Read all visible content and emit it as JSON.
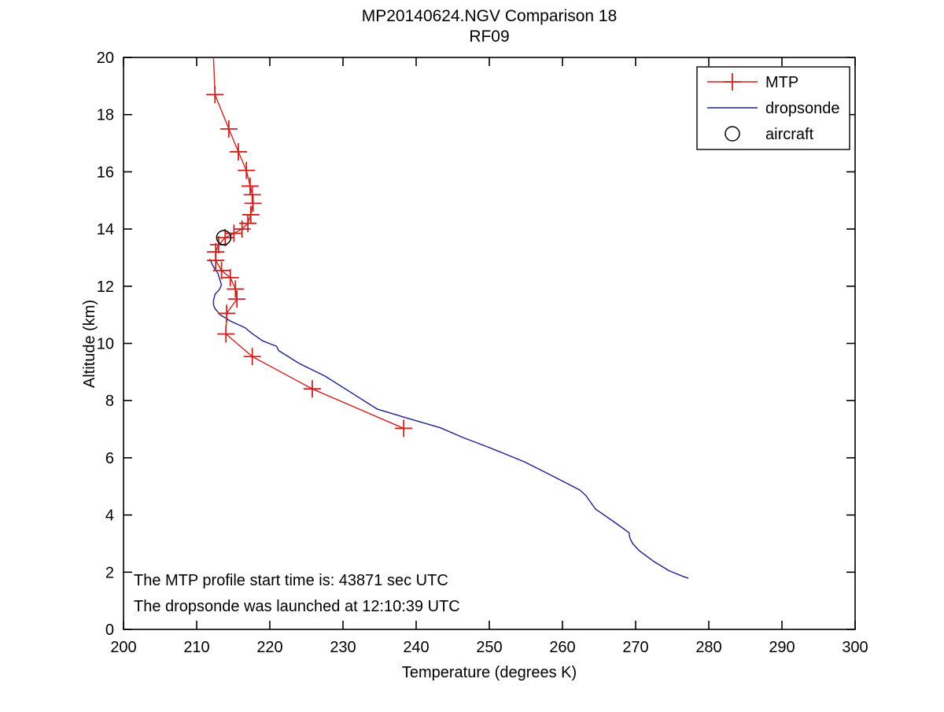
{
  "figure": {
    "background": "#ffffff",
    "axis_color": "#000000"
  },
  "chart_data": {
    "type": "line",
    "title": "MP20140624.NGV Comparison 18",
    "subtitle": "RF09",
    "xlabel": "Temperature (degrees K)",
    "ylabel": "Altitude (km)",
    "xlim": [
      200,
      300
    ],
    "ylim": [
      0,
      20
    ],
    "x_ticks": [
      200,
      210,
      220,
      230,
      240,
      250,
      260,
      270,
      280,
      290,
      300
    ],
    "y_ticks": [
      0,
      2,
      4,
      6,
      8,
      10,
      12,
      14,
      16,
      18,
      20
    ],
    "grid": false,
    "legend_position": "top-right",
    "annotations": [
      "The MTP profile start time is: 43871 sec UTC",
      "The dropsonde was launched at 12:10:39 UTC"
    ],
    "series": [
      {
        "name": "dropsonde",
        "color": "#202088",
        "marker": "none",
        "line_width": 1.4,
        "points": [
          [
            211.8,
            12.95
          ],
          [
            212.2,
            12.72
          ],
          [
            212.5,
            12.6
          ],
          [
            212.9,
            12.45
          ],
          [
            213.2,
            12.2
          ],
          [
            213.4,
            12.05
          ],
          [
            213.1,
            11.88
          ],
          [
            212.5,
            11.72
          ],
          [
            212.3,
            11.5
          ],
          [
            212.3,
            11.35
          ],
          [
            212.5,
            11.22
          ],
          [
            213.2,
            11.0
          ],
          [
            214.7,
            10.77
          ],
          [
            216.6,
            10.55
          ],
          [
            217.5,
            10.36
          ],
          [
            219.0,
            10.09
          ],
          [
            220.9,
            9.9
          ],
          [
            221.2,
            9.75
          ],
          [
            224.0,
            9.3
          ],
          [
            227.5,
            8.86
          ],
          [
            231.0,
            8.3
          ],
          [
            234.7,
            7.7
          ],
          [
            239.0,
            7.37
          ],
          [
            243.3,
            7.05
          ],
          [
            246.5,
            6.7
          ],
          [
            249.8,
            6.38
          ],
          [
            254.8,
            5.86
          ],
          [
            258.7,
            5.36
          ],
          [
            262.4,
            4.87
          ],
          [
            263.2,
            4.68
          ],
          [
            264.5,
            4.21
          ],
          [
            267.0,
            3.77
          ],
          [
            269.1,
            3.38
          ],
          [
            269.2,
            3.2
          ],
          [
            269.6,
            3.0
          ],
          [
            270.2,
            2.83
          ],
          [
            270.5,
            2.75
          ],
          [
            272.4,
            2.39
          ],
          [
            274.5,
            2.06
          ],
          [
            276.5,
            1.85
          ],
          [
            277.2,
            1.79
          ]
        ]
      },
      {
        "name": "MTP",
        "color": "#cc2222",
        "marker": "plus",
        "marker_size": 11,
        "marker_from_index": 1,
        "line_width": 1.4,
        "points": [
          [
            212.3,
            20.0
          ],
          [
            212.5,
            18.7
          ],
          [
            214.4,
            17.5
          ],
          [
            215.7,
            16.7
          ],
          [
            216.8,
            16.05
          ],
          [
            217.3,
            15.5
          ],
          [
            217.6,
            15.2
          ],
          [
            217.7,
            14.9
          ],
          [
            217.4,
            14.5
          ],
          [
            217.0,
            14.2
          ],
          [
            216.2,
            14.0
          ],
          [
            215.1,
            13.85
          ],
          [
            213.9,
            13.7
          ],
          [
            213.0,
            13.45
          ],
          [
            212.6,
            13.2
          ],
          [
            212.6,
            12.9
          ],
          [
            213.4,
            12.55
          ],
          [
            214.6,
            12.3
          ],
          [
            215.3,
            11.9
          ],
          [
            215.5,
            11.55
          ],
          [
            214.1,
            11.05
          ],
          [
            214.0,
            10.33
          ],
          [
            217.6,
            9.54
          ],
          [
            225.8,
            8.41
          ],
          [
            238.3,
            7.03
          ]
        ]
      },
      {
        "name": "aircraft",
        "color": "#000000",
        "marker": "circle",
        "marker_size": 9,
        "line_width": 1.5,
        "points": [
          [
            213.7,
            13.7
          ]
        ]
      }
    ]
  },
  "legend": {
    "entries": [
      {
        "label": "MTP",
        "color": "#cc2222",
        "glyph": "line-plus"
      },
      {
        "label": "dropsonde",
        "color": "#202088",
        "glyph": "line"
      },
      {
        "label": "aircraft",
        "color": "#000000",
        "glyph": "circle"
      }
    ]
  }
}
